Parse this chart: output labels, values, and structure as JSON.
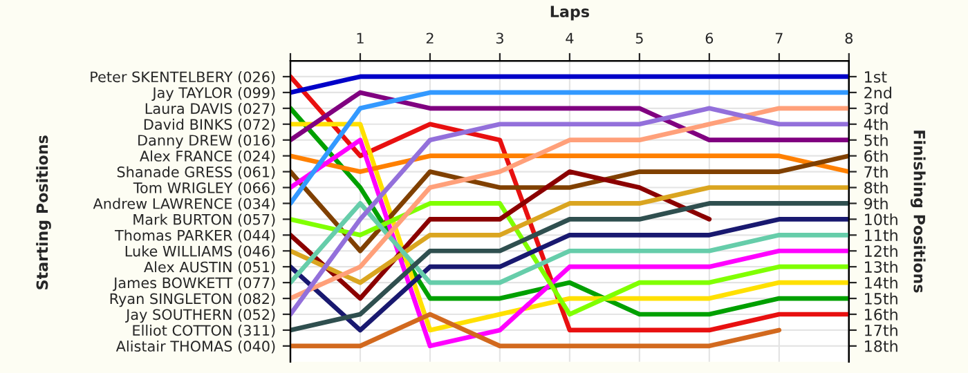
{
  "chart_data": {
    "type": "line",
    "xlabel": "Laps",
    "annotations": [
      "Starting Positions"
    ],
    "y2label": "Finishing Positions",
    "x": [
      0,
      1,
      2,
      3,
      4,
      5,
      6,
      7,
      8
    ],
    "xlim": [
      0,
      8
    ],
    "xticks": [
      {
        "value": 0,
        "label": null
      },
      1,
      2,
      3,
      4,
      5,
      6,
      7,
      8
    ],
    "y_categories": [
      "Peter SKENTELBERY (026)",
      "Jay TAYLOR (099)",
      "Laura DAVIS (027)",
      "David BINKS (072)",
      "Danny DREW (016)",
      "Alex FRANCE (024)",
      "Shanade GRESS (061)",
      "Tom WRIGLEY (066)",
      "Andrew LAWRENCE (034)",
      "Mark BURTON (057)",
      "Thomas PARKER (044)",
      "Luke WILLIAMS (046)",
      "Alex AUSTIN (051)",
      "James BOWKETT (077)",
      "Ryan SINGLETON (082)",
      "Jay SOUTHERN (052)",
      "Elliot COTTON (311)",
      "Alistair THOMAS (040)"
    ],
    "y2lim": [
      19,
      0
    ],
    "y2ticks": [
      {
        "value": 1,
        "label": "1st"
      },
      {
        "value": 2,
        "label": "2nd"
      },
      {
        "value": 3,
        "label": "3rd"
      },
      {
        "value": 4,
        "label": "4th"
      },
      {
        "value": 5,
        "label": "5th"
      },
      {
        "value": 6,
        "label": "6th"
      },
      {
        "value": 7,
        "label": "7th"
      },
      {
        "value": 8,
        "label": "8th"
      },
      {
        "value": 9,
        "label": "9th"
      },
      {
        "value": 10,
        "label": "10th"
      },
      {
        "value": 11,
        "label": "11th"
      },
      {
        "value": 12,
        "label": "12th"
      },
      {
        "value": 13,
        "label": "13th"
      },
      {
        "value": 14,
        "label": "14th"
      },
      {
        "value": 15,
        "label": "15th"
      },
      {
        "value": 16,
        "label": "16th"
      },
      {
        "value": 17,
        "label": "17th"
      },
      {
        "value": 18,
        "label": "18th"
      }
    ],
    "grid": true,
    "legend": false,
    "marker": "none",
    "line_style": "solid",
    "series": [
      {
        "axis": "y2",
        "color": "#e81010",
        "values": [
          1,
          6,
          4,
          5,
          17,
          17,
          17,
          16,
          16
        ]
      },
      {
        "axis": "y2",
        "color": "#0000c8",
        "values": [
          2,
          1,
          1,
          1,
          1,
          1,
          1,
          1,
          1
        ]
      },
      {
        "axis": "y2",
        "color": "#00a000",
        "values": [
          3,
          8,
          15,
          15,
          14,
          16,
          16,
          15,
          15
        ]
      },
      {
        "axis": "y2",
        "color": "#ffe000",
        "values": [
          4,
          4,
          17,
          16,
          15,
          15,
          15,
          14,
          14
        ]
      },
      {
        "axis": "y2",
        "color": "#800080",
        "values": [
          5,
          2,
          3,
          3,
          3,
          3,
          5,
          5,
          5
        ]
      },
      {
        "axis": "y2",
        "color": "#ff8000",
        "values": [
          6,
          7,
          6,
          6,
          6,
          6,
          6,
          6,
          7
        ]
      },
      {
        "axis": "y2",
        "color": "#804000",
        "values": [
          7,
          12,
          7,
          8,
          8,
          7,
          7,
          7,
          6
        ]
      },
      {
        "axis": "y2",
        "color": "#ff00ff",
        "values": [
          8,
          5,
          18,
          17,
          13,
          13,
          13,
          12,
          12
        ]
      },
      {
        "axis": "y2",
        "color": "#3399ff",
        "values": [
          9,
          3,
          2,
          2,
          2,
          2,
          2,
          2,
          2
        ]
      },
      {
        "axis": "y2",
        "color": "#80ff00",
        "values": [
          10,
          11,
          9,
          9,
          16,
          14,
          14,
          13,
          13
        ]
      },
      {
        "axis": "y2",
        "color": "#8b0000",
        "values": [
          11,
          15,
          10,
          10,
          7,
          8,
          10,
          null,
          null
        ]
      },
      {
        "axis": "y2",
        "color": "#daa520",
        "values": [
          12,
          14,
          11,
          11,
          9,
          9,
          8,
          8,
          8
        ]
      },
      {
        "axis": "y2",
        "color": "#191970",
        "values": [
          13,
          17,
          13,
          13,
          11,
          11,
          11,
          10,
          10
        ]
      },
      {
        "axis": "y2",
        "color": "#66cdaa",
        "values": [
          14,
          9,
          14,
          14,
          12,
          12,
          12,
          11,
          11
        ]
      },
      {
        "axis": "y2",
        "color": "#ffa07a",
        "values": [
          15,
          13,
          8,
          7,
          5,
          5,
          4,
          3,
          3
        ]
      },
      {
        "axis": "y2",
        "color": "#9370db",
        "values": [
          16,
          10,
          5,
          4,
          4,
          4,
          3,
          4,
          4
        ]
      },
      {
        "axis": "y2",
        "color": "#2f4f4f",
        "values": [
          17,
          16,
          12,
          12,
          10,
          10,
          9,
          9,
          9
        ]
      },
      {
        "axis": "y2",
        "color": "#d2691e",
        "values": [
          18,
          18,
          16,
          18,
          18,
          18,
          18,
          17,
          null
        ]
      }
    ]
  }
}
